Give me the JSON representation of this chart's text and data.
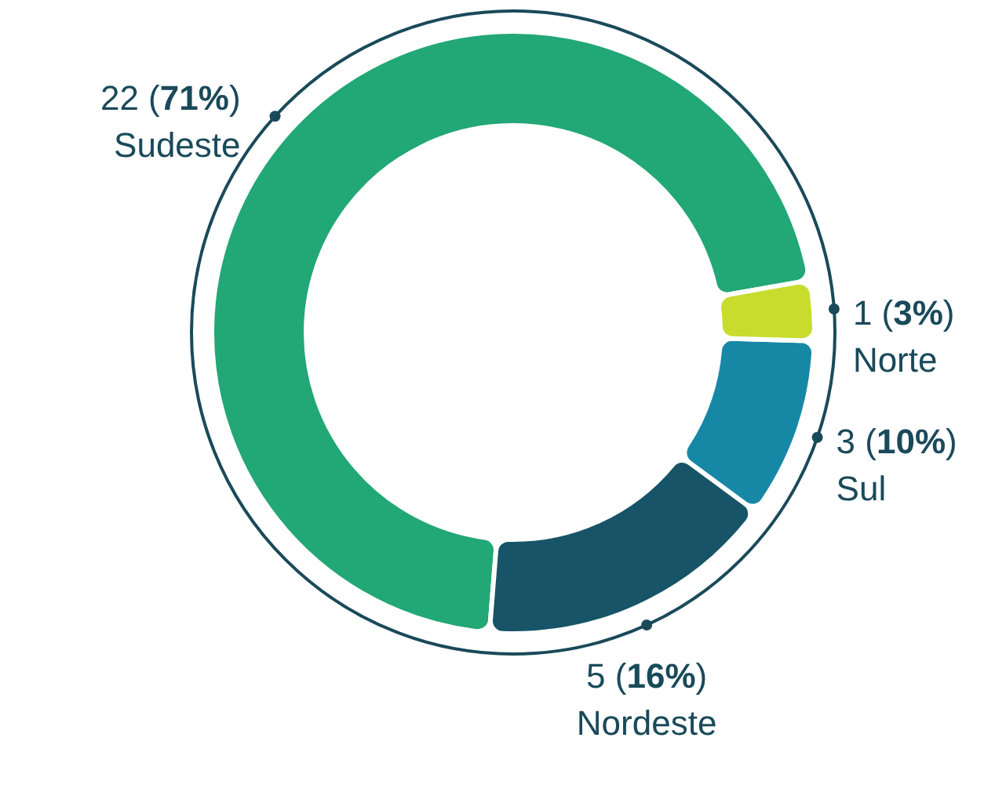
{
  "chart_data": {
    "type": "donut",
    "categories": [
      "Sudeste",
      "Nordeste",
      "Sul",
      "Norte"
    ],
    "values": [
      22,
      5,
      3,
      1
    ],
    "value_labels": [
      "22 (71%)",
      "5 (16%)",
      "3 (10%)",
      "1 (3%)"
    ],
    "colors": [
      "#22a776",
      "#175467",
      "#1787a6",
      "#c8dc2e"
    ]
  }
}
